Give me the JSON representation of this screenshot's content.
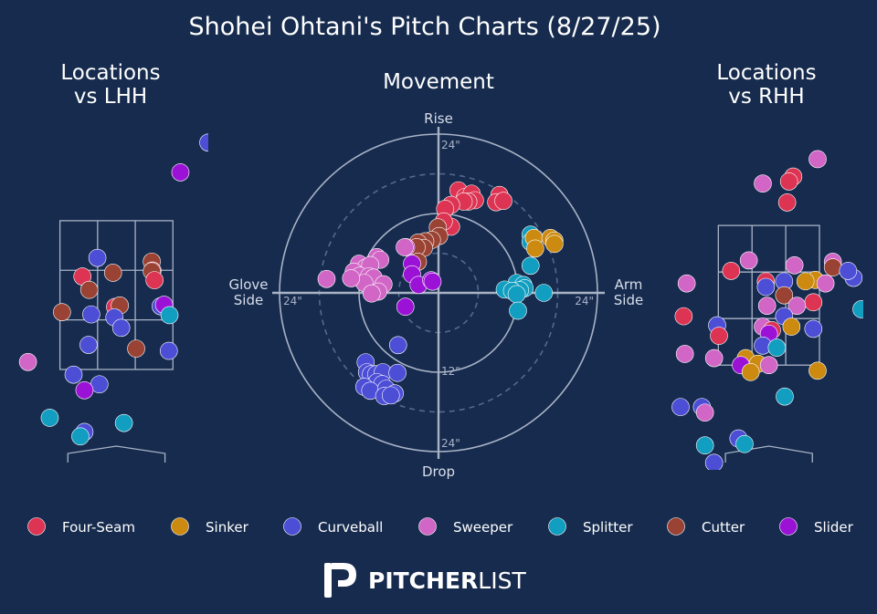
{
  "title": "Shohei Ohtani's Pitch Charts (8/27/25)",
  "colors": {
    "background": "#162b4e",
    "four_seam": "#dc3452",
    "sinker": "#cc8a10",
    "curveball": "#4c4ed6",
    "sweeper": "#d166c6",
    "splitter": "#119ec0",
    "cutter": "#9a4334",
    "slider": "#9b12d6"
  },
  "legend": [
    {
      "key": "four_seam",
      "label": "Four-Seam"
    },
    {
      "key": "sinker",
      "label": "Sinker"
    },
    {
      "key": "curveball",
      "label": "Curveball"
    },
    {
      "key": "sweeper",
      "label": "Sweeper"
    },
    {
      "key": "splitter",
      "label": "Splitter"
    },
    {
      "key": "cutter",
      "label": "Cutter"
    },
    {
      "key": "slider",
      "label": "Slider"
    }
  ],
  "logo": {
    "bold": "PITCHER",
    "light": "LIST"
  },
  "chart_data": [
    {
      "type": "scatter",
      "title": "Locations\nvs LHH",
      "x_range": [
        -1.55,
        1.35
      ],
      "y_range": [
        0.15,
        4.75
      ],
      "zone": {
        "x": [
          -0.83,
          0.83
        ],
        "y": [
          1.5,
          3.5
        ]
      },
      "points": [
        {
          "type": "curveball",
          "x": 1.35,
          "y": 4.55
        },
        {
          "type": "slider",
          "x": 0.94,
          "y": 4.15
        },
        {
          "type": "curveball",
          "x": -0.28,
          "y": 3.0
        },
        {
          "type": "cutter",
          "x": 0.52,
          "y": 2.95
        },
        {
          "type": "four_seam",
          "x": 0.53,
          "y": 2.83
        },
        {
          "type": "cutter",
          "x": -0.05,
          "y": 2.8
        },
        {
          "type": "four_seam",
          "x": -0.5,
          "y": 2.75
        },
        {
          "type": "cutter",
          "x": 0.52,
          "y": 2.82
        },
        {
          "type": "four_seam",
          "x": 0.56,
          "y": 2.7
        },
        {
          "type": "cutter",
          "x": -0.4,
          "y": 2.57
        },
        {
          "type": "four_seam",
          "x": -0.02,
          "y": 2.34
        },
        {
          "type": "cutter",
          "x": 0.05,
          "y": 2.36
        },
        {
          "type": "curveball",
          "x": 0.65,
          "y": 2.35
        },
        {
          "type": "slider",
          "x": 0.7,
          "y": 2.37
        },
        {
          "type": "cutter",
          "x": -0.8,
          "y": 2.27
        },
        {
          "type": "curveball",
          "x": -0.37,
          "y": 2.24
        },
        {
          "type": "curveball",
          "x": -0.03,
          "y": 2.2
        },
        {
          "type": "splitter",
          "x": 0.78,
          "y": 2.23
        },
        {
          "type": "curveball",
          "x": 0.07,
          "y": 2.06
        },
        {
          "type": "curveball",
          "x": -0.41,
          "y": 1.83
        },
        {
          "type": "cutter",
          "x": 0.29,
          "y": 1.78
        },
        {
          "type": "curveball",
          "x": 0.77,
          "y": 1.75
        },
        {
          "type": "sweeper",
          "x": -1.3,
          "y": 1.6
        },
        {
          "type": "curveball",
          "x": -0.63,
          "y": 1.43
        },
        {
          "type": "curveball",
          "x": -0.25,
          "y": 1.3
        },
        {
          "type": "slider",
          "x": -0.47,
          "y": 1.22
        },
        {
          "type": "splitter",
          "x": -0.98,
          "y": 0.85
        },
        {
          "type": "splitter",
          "x": 0.11,
          "y": 0.78
        },
        {
          "type": "curveball",
          "x": -0.47,
          "y": 0.66
        },
        {
          "type": "splitter",
          "x": -0.53,
          "y": 0.6
        }
      ]
    },
    {
      "type": "scatter",
      "title": "Movement",
      "label_top": "Rise",
      "label_bottom": "Drop",
      "label_left": "Glove\nSide",
      "label_right": "Arm\nSide",
      "radius_max": 24,
      "rings": [
        {
          "r": 6,
          "style": "dashed"
        },
        {
          "r": 12,
          "style": "solid",
          "label": "12\""
        },
        {
          "r": 18,
          "style": "dashed"
        },
        {
          "r": 24,
          "style": "solid",
          "label": "24\""
        }
      ],
      "axis_tick_label": "24\"",
      "points": [
        {
          "type": "four_seam",
          "x": 3.0,
          "y": 15.5
        },
        {
          "type": "four_seam",
          "x": 4.0,
          "y": 14.5
        },
        {
          "type": "four_seam",
          "x": 5.0,
          "y": 15.0
        },
        {
          "type": "four_seam",
          "x": 5.5,
          "y": 14.0
        },
        {
          "type": "four_seam",
          "x": 4.5,
          "y": 13.8
        },
        {
          "type": "four_seam",
          "x": 3.8,
          "y": 13.8
        },
        {
          "type": "four_seam",
          "x": 1.9,
          "y": 13.3
        },
        {
          "type": "four_seam",
          "x": 9.2,
          "y": 14.8
        },
        {
          "type": "four_seam",
          "x": 8.7,
          "y": 13.7
        },
        {
          "type": "four_seam",
          "x": 9.8,
          "y": 13.9
        },
        {
          "type": "four_seam",
          "x": 1.0,
          "y": 12.7
        },
        {
          "type": "four_seam",
          "x": 1.9,
          "y": 10.0
        },
        {
          "type": "four_seam",
          "x": 0.8,
          "y": 10.8
        },
        {
          "type": "cutter",
          "x": -0.1,
          "y": 9.9
        },
        {
          "type": "cutter",
          "x": 0.1,
          "y": 8.6
        },
        {
          "type": "cutter",
          "x": -1.0,
          "y": 8.0
        },
        {
          "type": "cutter",
          "x": -2.0,
          "y": 7.8
        },
        {
          "type": "cutter",
          "x": -3.1,
          "y": 7.6
        },
        {
          "type": "cutter",
          "x": -2.2,
          "y": 6.8
        },
        {
          "type": "cutter",
          "x": -3.3,
          "y": 6.9
        },
        {
          "type": "cutter",
          "x": -3.1,
          "y": 4.7
        },
        {
          "type": "slider",
          "x": -4.9,
          "y": 6.9
        },
        {
          "type": "slider",
          "x": -4.0,
          "y": 4.4
        },
        {
          "type": "slider",
          "x": -4.0,
          "y": 2.8
        },
        {
          "type": "slider",
          "x": -3.0,
          "y": 1.2
        },
        {
          "type": "slider",
          "x": -1.1,
          "y": 1.9
        },
        {
          "type": "slider",
          "x": -0.9,
          "y": 1.7
        },
        {
          "type": "slider",
          "x": -5.0,
          "y": -2.1
        },
        {
          "type": "sweeper",
          "x": -9.3,
          "y": 5.4
        },
        {
          "type": "sweeper",
          "x": -8.8,
          "y": 5.0
        },
        {
          "type": "sweeper",
          "x": -12.0,
          "y": 4.4
        },
        {
          "type": "sweeper",
          "x": -11.0,
          "y": 3.8
        },
        {
          "type": "sweeper",
          "x": -10.3,
          "y": 4.2
        },
        {
          "type": "sweeper",
          "x": -12.8,
          "y": 3.2
        },
        {
          "type": "sweeper",
          "x": -11.9,
          "y": 2.6
        },
        {
          "type": "sweeper",
          "x": -10.5,
          "y": 2.5
        },
        {
          "type": "sweeper",
          "x": -9.8,
          "y": 2.3
        },
        {
          "type": "sweeper",
          "x": -8.3,
          "y": 1.3
        },
        {
          "type": "sweeper",
          "x": -11.2,
          "y": 1.5
        },
        {
          "type": "sweeper",
          "x": -9.1,
          "y": 0.2
        },
        {
          "type": "sweeper",
          "x": -13.2,
          "y": 2.2
        },
        {
          "type": "sweeper",
          "x": -16.9,
          "y": 2.1
        },
        {
          "type": "sweeper",
          "x": -10.1,
          "y": -0.1
        },
        {
          "type": "sweeper",
          "x": -5.1,
          "y": 6.9
        },
        {
          "type": "splitter",
          "x": 13.9,
          "y": 8.8
        },
        {
          "type": "splitter",
          "x": 13.9,
          "y": 7.7
        },
        {
          "type": "splitter",
          "x": 13.9,
          "y": 4.1
        },
        {
          "type": "splitter",
          "x": 11.8,
          "y": 1.5
        },
        {
          "type": "splitter",
          "x": 12.8,
          "y": 1.2
        },
        {
          "type": "splitter",
          "x": 13.0,
          "y": 0.7
        },
        {
          "type": "splitter",
          "x": 12.3,
          "y": 0.4
        },
        {
          "type": "splitter",
          "x": 10.0,
          "y": 0.5
        },
        {
          "type": "splitter",
          "x": 11.1,
          "y": 0.3
        },
        {
          "type": "splitter",
          "x": 11.8,
          "y": -0.2
        },
        {
          "type": "splitter",
          "x": 15.9,
          "y": 0.0
        },
        {
          "type": "splitter",
          "x": 12.0,
          "y": -2.7
        },
        {
          "type": "sinker",
          "x": 14.4,
          "y": 8.3
        },
        {
          "type": "sinker",
          "x": 16.9,
          "y": 8.3
        },
        {
          "type": "sinker",
          "x": 17.5,
          "y": 7.9
        },
        {
          "type": "sinker",
          "x": 17.5,
          "y": 7.4
        },
        {
          "type": "sinker",
          "x": 14.6,
          "y": 6.7
        },
        {
          "type": "curveball",
          "x": -6.1,
          "y": -7.9
        },
        {
          "type": "curveball",
          "x": -11.0,
          "y": -10.5
        },
        {
          "type": "curveball",
          "x": -10.8,
          "y": -12.0
        },
        {
          "type": "curveball",
          "x": -10.2,
          "y": -12.3
        },
        {
          "type": "curveball",
          "x": -9.4,
          "y": -12.3
        },
        {
          "type": "curveball",
          "x": -8.4,
          "y": -12.0
        },
        {
          "type": "curveball",
          "x": -6.2,
          "y": -12.1
        },
        {
          "type": "curveball",
          "x": -9.3,
          "y": -13.5
        },
        {
          "type": "curveball",
          "x": -8.5,
          "y": -13.8
        },
        {
          "type": "curveball",
          "x": -11.2,
          "y": -14.2
        },
        {
          "type": "curveball",
          "x": -10.3,
          "y": -14.8
        },
        {
          "type": "curveball",
          "x": -7.9,
          "y": -14.5
        },
        {
          "type": "curveball",
          "x": -6.6,
          "y": -15.2
        },
        {
          "type": "curveball",
          "x": -8.2,
          "y": -15.6
        },
        {
          "type": "curveball",
          "x": -7.2,
          "y": -15.5
        }
      ]
    },
    {
      "type": "scatter",
      "title": "Locations\nvs RHH",
      "x_range": [
        -1.6,
        1.55
      ],
      "y_range": [
        0.0,
        4.9
      ],
      "zone": {
        "x": [
          -0.83,
          0.83
        ],
        "y": [
          1.5,
          3.5
        ]
      },
      "points": [
        {
          "type": "sweeper",
          "x": 0.8,
          "y": 4.45
        },
        {
          "type": "four_seam",
          "x": 0.4,
          "y": 4.2
        },
        {
          "type": "four_seam",
          "x": 0.33,
          "y": 4.13
        },
        {
          "type": "sweeper",
          "x": -0.1,
          "y": 4.1
        },
        {
          "type": "four_seam",
          "x": 0.3,
          "y": 3.83
        },
        {
          "type": "sweeper",
          "x": -0.33,
          "y": 3.0
        },
        {
          "type": "sweeper",
          "x": 0.42,
          "y": 2.93
        },
        {
          "type": "sweeper",
          "x": 1.05,
          "y": 2.98
        },
        {
          "type": "cutter",
          "x": 1.05,
          "y": 2.9
        },
        {
          "type": "four_seam",
          "x": -0.62,
          "y": 2.85
        },
        {
          "type": "curveball",
          "x": 1.39,
          "y": 2.75
        },
        {
          "type": "curveball",
          "x": 1.3,
          "y": 2.85
        },
        {
          "type": "four_seam",
          "x": -0.05,
          "y": 2.7
        },
        {
          "type": "sinker",
          "x": 0.76,
          "y": 2.72
        },
        {
          "type": "sinker",
          "x": 0.6,
          "y": 2.7
        },
        {
          "type": "curveball",
          "x": 0.25,
          "y": 2.7
        },
        {
          "type": "sweeper",
          "x": 0.93,
          "y": 2.67
        },
        {
          "type": "sweeper",
          "x": -1.35,
          "y": 2.67
        },
        {
          "type": "curveball",
          "x": -0.05,
          "y": 2.62
        },
        {
          "type": "cutter",
          "x": 0.25,
          "y": 2.5
        },
        {
          "type": "four_seam",
          "x": 0.73,
          "y": 2.4
        },
        {
          "type": "sweeper",
          "x": 0.46,
          "y": 2.35
        },
        {
          "type": "sweeper",
          "x": -0.03,
          "y": 2.35
        },
        {
          "type": "splitter",
          "x": 1.52,
          "y": 2.3
        },
        {
          "type": "four_seam",
          "x": -1.4,
          "y": 2.2
        },
        {
          "type": "curveball",
          "x": 0.25,
          "y": 2.2
        },
        {
          "type": "sinker",
          "x": 0.37,
          "y": 2.05
        },
        {
          "type": "sweeper",
          "x": -0.1,
          "y": 2.05
        },
        {
          "type": "four_seam",
          "x": 0.05,
          "y": 2.0
        },
        {
          "type": "curveball",
          "x": -0.85,
          "y": 2.07
        },
        {
          "type": "curveball",
          "x": 0.73,
          "y": 2.02
        },
        {
          "type": "four_seam",
          "x": -0.82,
          "y": 1.92
        },
        {
          "type": "slider",
          "x": 0.0,
          "y": 1.95
        },
        {
          "type": "curveball",
          "x": -0.1,
          "y": 1.78
        },
        {
          "type": "splitter",
          "x": 0.13,
          "y": 1.75
        },
        {
          "type": "sweeper",
          "x": -1.38,
          "y": 1.66
        },
        {
          "type": "sweeper",
          "x": -0.9,
          "y": 1.6
        },
        {
          "type": "sinker",
          "x": -0.38,
          "y": 1.6
        },
        {
          "type": "slider",
          "x": -0.46,
          "y": 1.5
        },
        {
          "type": "sinker",
          "x": -0.18,
          "y": 1.52
        },
        {
          "type": "sweeper",
          "x": 0.0,
          "y": 1.5
        },
        {
          "type": "sinker",
          "x": -0.3,
          "y": 1.4
        },
        {
          "type": "sinker",
          "x": 0.8,
          "y": 1.42
        },
        {
          "type": "splitter",
          "x": 0.26,
          "y": 1.05
        },
        {
          "type": "curveball",
          "x": -1.45,
          "y": 0.9
        },
        {
          "type": "curveball",
          "x": -1.1,
          "y": 0.9
        },
        {
          "type": "sweeper",
          "x": -1.05,
          "y": 0.82
        },
        {
          "type": "curveball",
          "x": -0.5,
          "y": 0.45
        },
        {
          "type": "splitter",
          "x": -1.05,
          "y": 0.35
        },
        {
          "type": "splitter",
          "x": -0.4,
          "y": 0.37
        },
        {
          "type": "curveball",
          "x": -0.9,
          "y": 0.1
        },
        {
          "type": "splitter",
          "x": -0.92,
          "y": -0.2
        }
      ]
    }
  ]
}
